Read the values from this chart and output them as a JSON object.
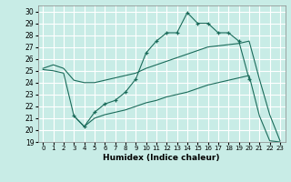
{
  "xlabel": "Humidex (Indice chaleur)",
  "xlim": [
    -0.5,
    23.5
  ],
  "ylim": [
    19,
    30.5
  ],
  "xticks": [
    0,
    1,
    2,
    3,
    4,
    5,
    6,
    7,
    8,
    9,
    10,
    11,
    12,
    13,
    14,
    15,
    16,
    17,
    18,
    19,
    20,
    21,
    22,
    23
  ],
  "yticks": [
    19,
    20,
    21,
    22,
    23,
    24,
    25,
    26,
    27,
    28,
    29,
    30
  ],
  "bg_color": "#c8ece6",
  "grid_color": "#ffffff",
  "line_color": "#1a6b5a",
  "line1_x": [
    3,
    4,
    5,
    6,
    7,
    8,
    9,
    10,
    11,
    12,
    13,
    14,
    15,
    16,
    17,
    18,
    19,
    20
  ],
  "line1_y": [
    21.2,
    20.3,
    21.5,
    22.2,
    22.5,
    23.2,
    24.3,
    26.5,
    27.5,
    28.2,
    28.2,
    29.9,
    29.0,
    29.0,
    28.2,
    28.2,
    27.5,
    24.3
  ],
  "line2_x": [
    0,
    1,
    2,
    3,
    4,
    5,
    6,
    7,
    8,
    9,
    10,
    11,
    12,
    13,
    14,
    15,
    16,
    17,
    18,
    19,
    20,
    21,
    22,
    23
  ],
  "line2_y": [
    25.2,
    25.5,
    25.2,
    24.2,
    24.0,
    24.0,
    24.2,
    24.4,
    24.6,
    24.8,
    25.2,
    25.5,
    25.8,
    26.1,
    26.4,
    26.7,
    27.0,
    27.1,
    27.2,
    27.3,
    27.5,
    24.3,
    21.3,
    19.1
  ],
  "line3_x": [
    0,
    1,
    2,
    3,
    4,
    5,
    6,
    7,
    8,
    9,
    10,
    11,
    12,
    13,
    14,
    15,
    16,
    17,
    18,
    19,
    20,
    21,
    22,
    23
  ],
  "line3_y": [
    25.1,
    25.0,
    24.8,
    21.2,
    20.3,
    21.0,
    21.3,
    21.5,
    21.7,
    22.0,
    22.3,
    22.5,
    22.8,
    23.0,
    23.2,
    23.5,
    23.8,
    24.0,
    24.2,
    24.4,
    24.6,
    21.2,
    19.1,
    19.0
  ]
}
